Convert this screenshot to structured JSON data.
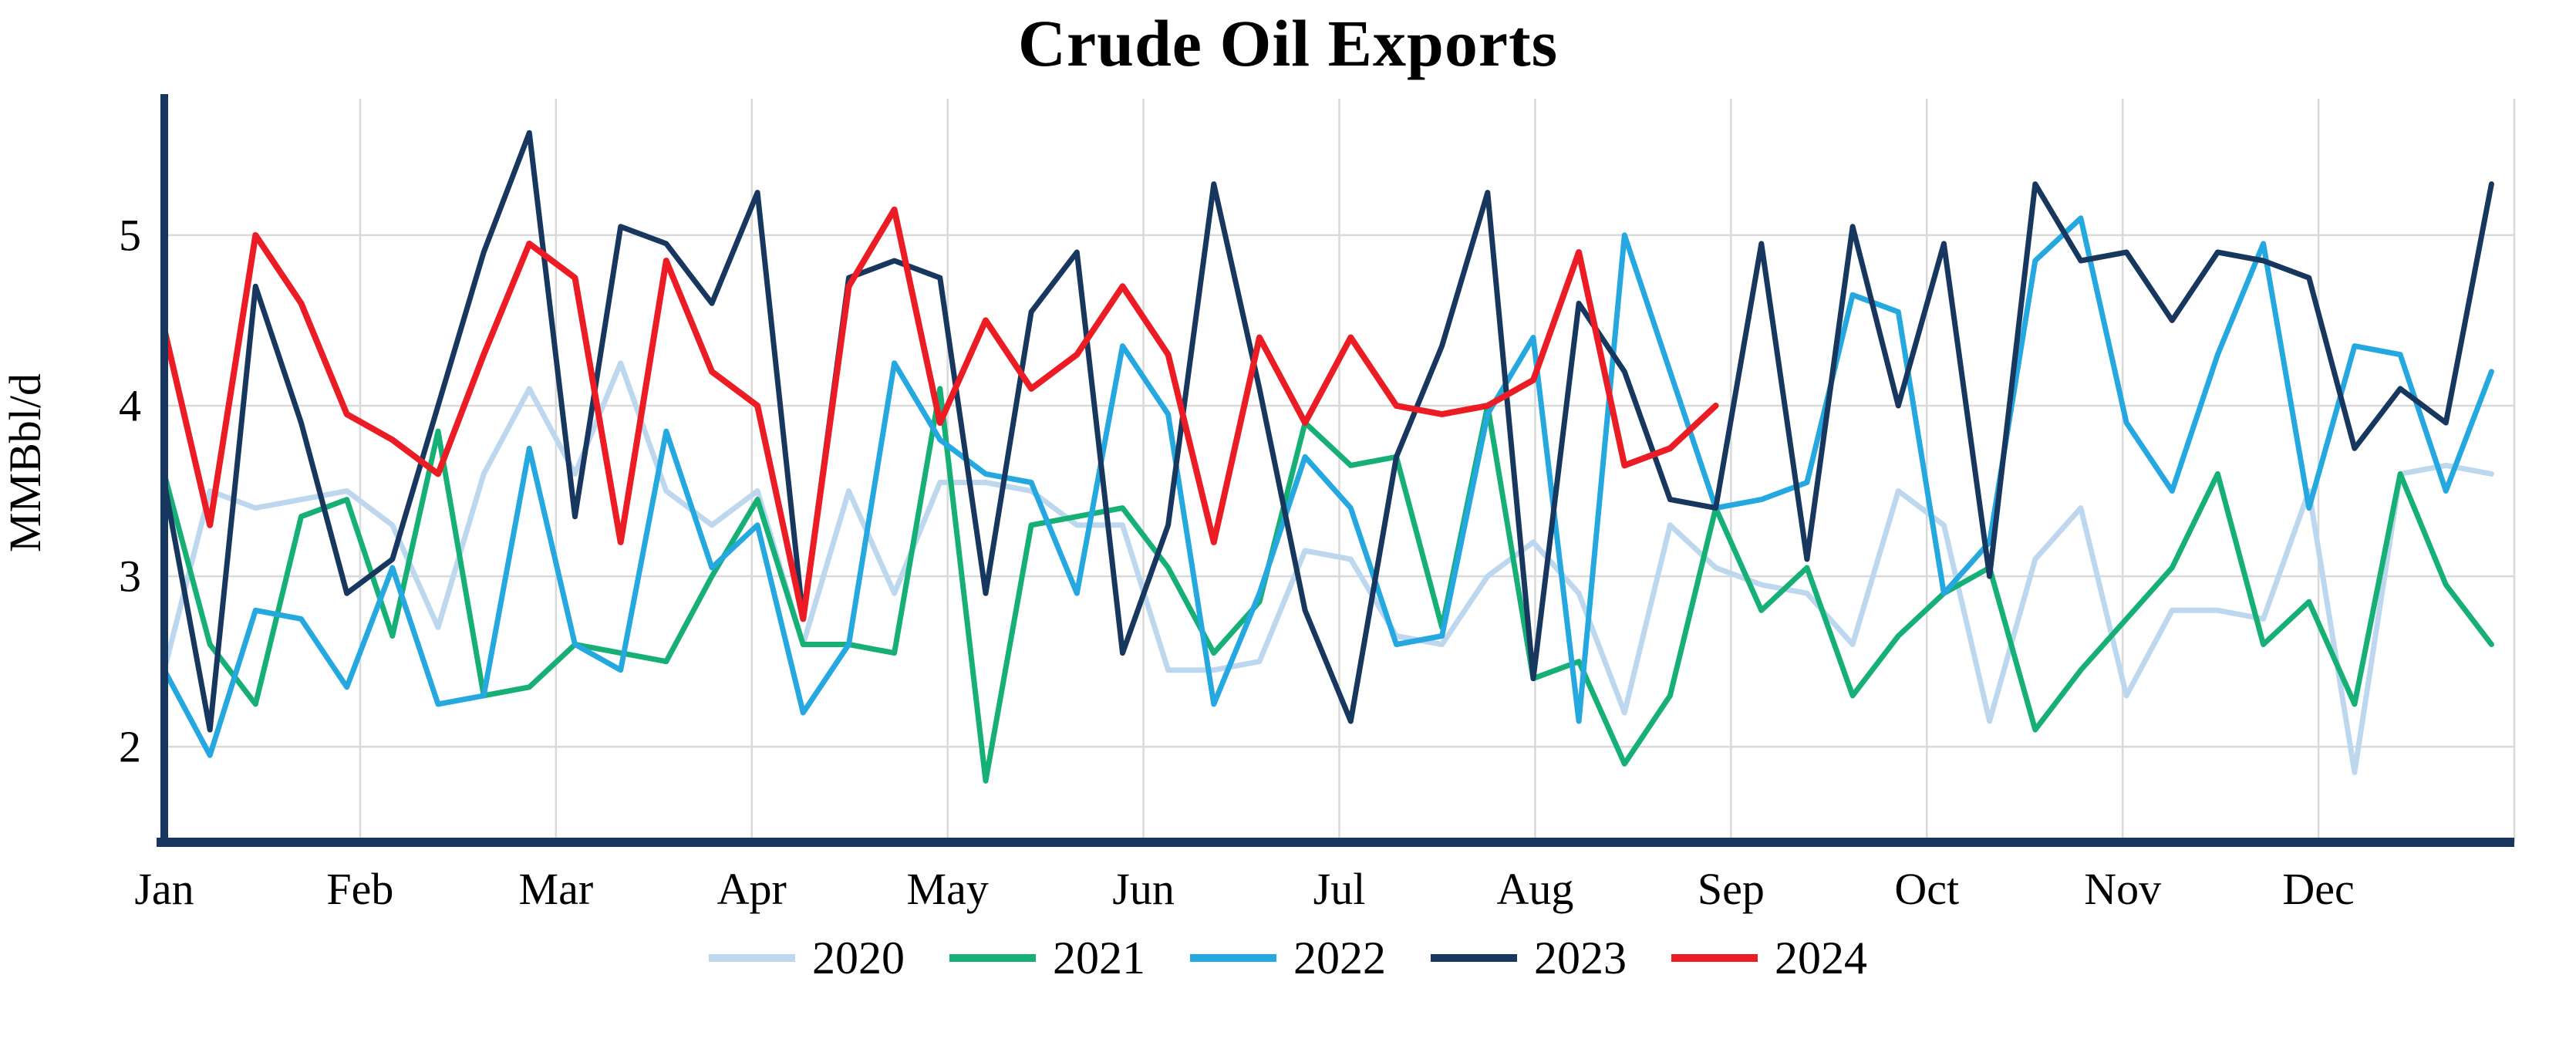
{
  "chart_data": {
    "type": "line",
    "title": "Crude Oil Exports",
    "xlabel": "",
    "ylabel": "MMBbl/d",
    "x_unit": "weekly observations, Jan through Dec",
    "x_tick_labels": [
      "Jan",
      "Feb",
      "Mar",
      "Apr",
      "May",
      "Jun",
      "Jul",
      "Aug",
      "Sep",
      "Oct",
      "Nov",
      "Dec"
    ],
    "y_ticks": [
      2,
      3,
      4,
      5
    ],
    "ylim": [
      1.44,
      5.8
    ],
    "grid": true,
    "grid_color": "#d9d9d9",
    "axis_color": "#17375e",
    "legend_position": "bottom",
    "series": [
      {
        "name": "2020",
        "color": "#bdd7ee",
        "values": [
          2.45,
          3.5,
          3.4,
          3.45,
          3.5,
          3.3,
          2.7,
          3.6,
          4.1,
          3.6,
          4.25,
          3.5,
          3.3,
          3.5,
          2.6,
          3.5,
          2.9,
          3.55,
          3.55,
          3.5,
          3.3,
          3.3,
          2.45,
          2.45,
          2.5,
          3.15,
          3.1,
          2.65,
          2.6,
          3.0,
          3.2,
          2.9,
          2.2,
          3.3,
          3.05,
          2.95,
          2.9,
          2.6,
          3.5,
          3.3,
          2.15,
          3.1,
          3.4,
          2.3,
          2.8,
          2.8,
          2.75,
          3.5,
          1.85,
          3.6,
          3.65,
          3.6
        ]
      },
      {
        "name": "2021",
        "color": "#16b077",
        "values": [
          3.6,
          2.6,
          2.25,
          3.35,
          3.45,
          2.65,
          3.85,
          2.3,
          2.35,
          2.6,
          2.55,
          2.5,
          3.0,
          3.45,
          2.6,
          2.6,
          2.55,
          4.1,
          1.8,
          3.3,
          3.35,
          3.4,
          3.05,
          2.55,
          2.85,
          3.9,
          3.65,
          3.7,
          2.7,
          4.0,
          2.4,
          2.5,
          1.9,
          2.3,
          3.4,
          2.8,
          3.05,
          2.3,
          2.65,
          2.9,
          3.05,
          2.1,
          2.45,
          2.75,
          3.05,
          3.6,
          2.6,
          2.85,
          2.25,
          3.6,
          2.95,
          2.6
        ]
      },
      {
        "name": "2022",
        "color": "#25a8e0",
        "values": [
          2.45,
          1.95,
          2.8,
          2.75,
          2.35,
          3.05,
          2.25,
          2.3,
          3.75,
          2.6,
          2.45,
          3.85,
          3.05,
          3.3,
          2.2,
          2.6,
          4.25,
          3.8,
          3.6,
          3.55,
          2.9,
          4.35,
          3.95,
          2.25,
          2.9,
          3.7,
          3.4,
          2.6,
          2.65,
          3.95,
          4.4,
          2.15,
          5.0,
          4.2,
          3.4,
          3.45,
          3.55,
          4.65,
          4.55,
          2.9,
          3.2,
          4.85,
          5.1,
          3.9,
          3.5,
          4.3,
          4.95,
          3.4,
          4.35,
          4.3,
          3.5,
          4.2
        ]
      },
      {
        "name": "2023",
        "color": "#17375e",
        "values": [
          3.55,
          2.1,
          4.7,
          3.9,
          2.9,
          3.1,
          4.0,
          4.9,
          5.6,
          3.35,
          5.05,
          4.95,
          4.6,
          5.25,
          2.75,
          4.75,
          4.85,
          4.75,
          2.9,
          4.55,
          4.9,
          2.55,
          3.3,
          5.3,
          4.1,
          2.8,
          2.15,
          3.7,
          4.35,
          5.25,
          2.4,
          4.6,
          4.2,
          3.45,
          3.4,
          4.95,
          3.1,
          5.05,
          4.0,
          4.95,
          3.0,
          5.3,
          4.85,
          4.9,
          4.5,
          4.9,
          4.85,
          4.75,
          3.75,
          4.1,
          3.9,
          5.3
        ]
      },
      {
        "name": "2024",
        "color": "#ec1c24",
        "values": [
          4.45,
          3.3,
          5.0,
          4.6,
          3.95,
          3.8,
          3.6,
          4.3,
          4.95,
          4.75,
          3.2,
          4.85,
          4.2,
          4.0,
          2.75,
          4.7,
          5.15,
          3.9,
          4.5,
          4.1,
          4.3,
          4.7,
          4.3,
          3.2,
          4.4,
          3.9,
          4.4,
          4.0,
          3.95,
          4.0,
          4.15,
          4.9,
          3.65,
          3.75,
          4.0
        ]
      }
    ]
  }
}
